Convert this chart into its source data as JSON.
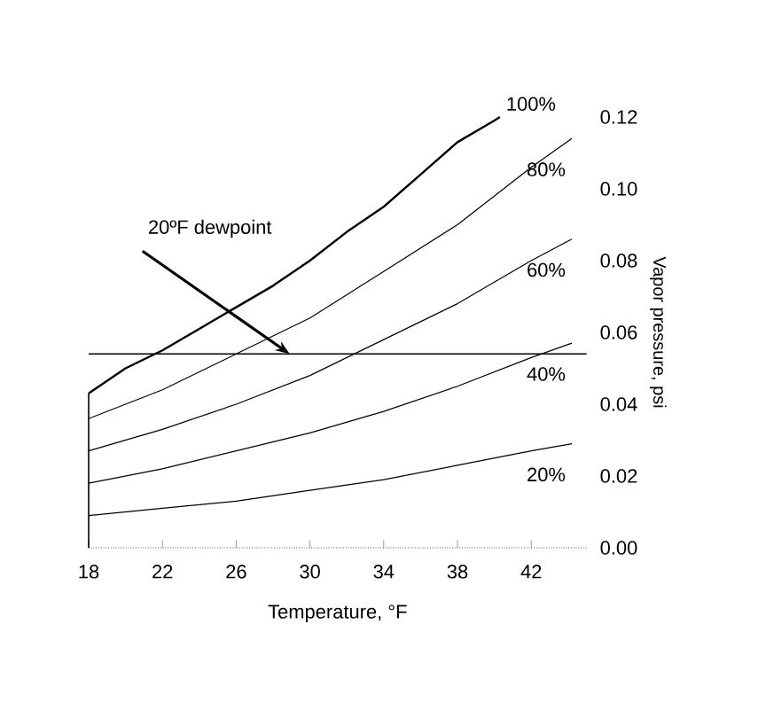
{
  "chart_data": {
    "type": "line",
    "xlabel": "Temperature, °F",
    "ylabel": "Vapor pressure, psi",
    "xlim": [
      18,
      45
    ],
    "ylim": [
      0,
      0.12
    ],
    "xticks": [
      18,
      22,
      26,
      30,
      34,
      38,
      42
    ],
    "yticks": [
      {
        "value": 0,
        "label": "0.00"
      },
      {
        "value": 0.02,
        "label": "0.02"
      },
      {
        "value": 0.04,
        "label": "0.04"
      },
      {
        "value": 0.06,
        "label": "0.06"
      },
      {
        "value": 0.08,
        "label": "0.08"
      },
      {
        "value": 0.1,
        "label": "0.10"
      },
      {
        "value": 0.12,
        "label": "0.12"
      }
    ],
    "grid": false,
    "marker": "none",
    "line_style": "solid",
    "series": [
      {
        "name": "100%",
        "color": "#000000",
        "x": [
          18,
          20,
          22,
          24,
          26,
          28,
          30,
          32,
          34,
          36,
          38,
          40,
          40.3
        ],
        "values": [
          0.043,
          0.05,
          0.055,
          0.061,
          0.067,
          0.073,
          0.08,
          0.088,
          0.095,
          0.104,
          0.113,
          0.119,
          0.12
        ]
      },
      {
        "name": "80%",
        "color": "#000000",
        "x": [
          18,
          22,
          26,
          30,
          34,
          38,
          42,
          44.2
        ],
        "values": [
          0.036,
          0.044,
          0.054,
          0.064,
          0.077,
          0.09,
          0.106,
          0.114
        ]
      },
      {
        "name": "60%",
        "color": "#000000",
        "x": [
          18,
          22,
          26,
          30,
          34,
          38,
          42,
          44.2
        ],
        "values": [
          0.027,
          0.033,
          0.04,
          0.048,
          0.058,
          0.068,
          0.08,
          0.086
        ]
      },
      {
        "name": "40%",
        "color": "#000000",
        "x": [
          18,
          22,
          26,
          30,
          34,
          38,
          42,
          44.2
        ],
        "values": [
          0.018,
          0.022,
          0.027,
          0.032,
          0.038,
          0.045,
          0.053,
          0.057
        ]
      },
      {
        "name": "20%",
        "color": "#000000",
        "x": [
          18,
          22,
          26,
          30,
          34,
          38,
          42,
          44.2
        ],
        "values": [
          0.009,
          0.011,
          0.013,
          0.016,
          0.019,
          0.023,
          0.027,
          0.029
        ]
      }
    ],
    "ref_lines": [
      {
        "axis": "y",
        "value": 0.054,
        "color": "#000000",
        "line_style": "solid"
      }
    ],
    "annotations": [
      {
        "text": "20ºF dewpoint",
        "x": 28.9,
        "y": 0.054
      }
    ]
  }
}
